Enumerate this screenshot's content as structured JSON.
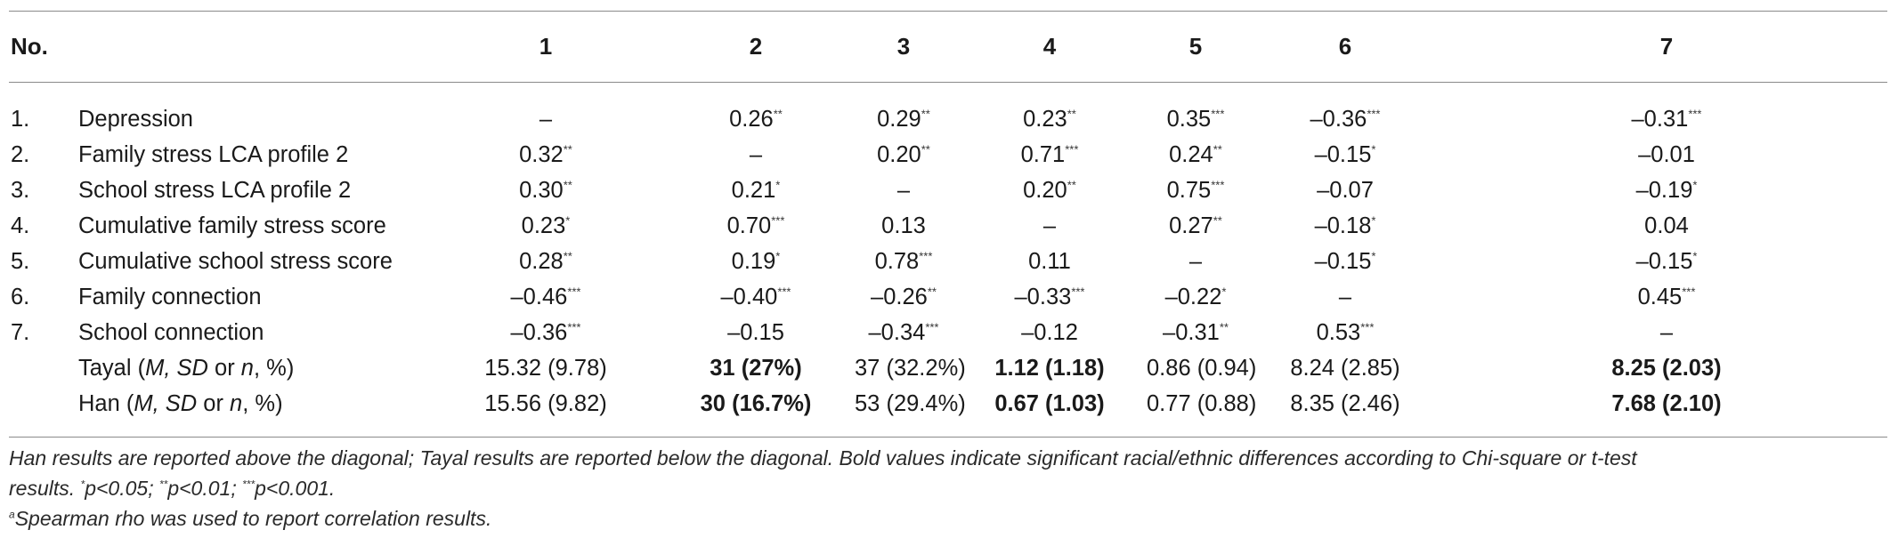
{
  "header": {
    "no_label": "No.",
    "columns": [
      "1",
      "2",
      "3",
      "4",
      "5",
      "6",
      "7"
    ]
  },
  "rows": [
    {
      "no": "1.",
      "label": "Depression",
      "cells": [
        {
          "v": "–",
          "s": "",
          "b": false
        },
        {
          "v": "0.26",
          "s": "**",
          "b": false
        },
        {
          "v": "0.29",
          "s": "**",
          "b": false
        },
        {
          "v": "0.23",
          "s": "**",
          "b": false
        },
        {
          "v": "0.35",
          "s": "***",
          "b": false
        },
        {
          "v": "–0.36",
          "s": "***",
          "b": false
        },
        {
          "v": "–0.31",
          "s": "***",
          "b": false
        }
      ]
    },
    {
      "no": "2.",
      "label": "Family stress LCA profile 2",
      "cells": [
        {
          "v": "0.32",
          "s": "**",
          "b": false
        },
        {
          "v": "–",
          "s": "",
          "b": false
        },
        {
          "v": "0.20",
          "s": "**",
          "b": false
        },
        {
          "v": "0.71",
          "s": "***",
          "b": false
        },
        {
          "v": "0.24",
          "s": "**",
          "b": false
        },
        {
          "v": "–0.15",
          "s": "*",
          "b": false
        },
        {
          "v": "–0.01",
          "s": "",
          "b": false
        }
      ]
    },
    {
      "no": "3.",
      "label": "School stress LCA profile 2",
      "cells": [
        {
          "v": "0.30",
          "s": "**",
          "b": false
        },
        {
          "v": "0.21",
          "s": "*",
          "b": false
        },
        {
          "v": "–",
          "s": "",
          "b": false
        },
        {
          "v": "0.20",
          "s": "**",
          "b": false
        },
        {
          "v": "0.75",
          "s": "***",
          "b": false
        },
        {
          "v": "–0.07",
          "s": "",
          "b": false
        },
        {
          "v": "–0.19",
          "s": "*",
          "b": false
        }
      ]
    },
    {
      "no": "4.",
      "label": "Cumulative family stress score",
      "cells": [
        {
          "v": "0.23",
          "s": "*",
          "b": false
        },
        {
          "v": "0.70",
          "s": "***",
          "b": false
        },
        {
          "v": "0.13",
          "s": "",
          "b": false
        },
        {
          "v": "–",
          "s": "",
          "b": false
        },
        {
          "v": "0.27",
          "s": "**",
          "b": false
        },
        {
          "v": "–0.18",
          "s": "*",
          "b": false
        },
        {
          "v": "0.04",
          "s": "",
          "b": false
        }
      ]
    },
    {
      "no": "5.",
      "label": "Cumulative school stress score",
      "cells": [
        {
          "v": "0.28",
          "s": "**",
          "b": false
        },
        {
          "v": "0.19",
          "s": "*",
          "b": false
        },
        {
          "v": "0.78",
          "s": "***",
          "b": false
        },
        {
          "v": "0.11",
          "s": "",
          "b": false
        },
        {
          "v": "–",
          "s": "",
          "b": false
        },
        {
          "v": "–0.15",
          "s": "*",
          "b": false
        },
        {
          "v": "–0.15",
          "s": "*",
          "b": false
        }
      ]
    },
    {
      "no": "6.",
      "label": "Family connection",
      "cells": [
        {
          "v": "–0.46",
          "s": "***",
          "b": false
        },
        {
          "v": "–0.40",
          "s": "***",
          "b": false
        },
        {
          "v": "–0.26",
          "s": "**",
          "b": false
        },
        {
          "v": "–0.33",
          "s": "***",
          "b": false
        },
        {
          "v": "–0.22",
          "s": "*",
          "b": false
        },
        {
          "v": "–",
          "s": "",
          "b": false
        },
        {
          "v": "0.45",
          "s": "***",
          "b": false
        }
      ]
    },
    {
      "no": "7.",
      "label": "School connection",
      "cells": [
        {
          "v": "–0.36",
          "s": "***",
          "b": false
        },
        {
          "v": "–0.15",
          "s": "",
          "b": false
        },
        {
          "v": "–0.34",
          "s": "***",
          "b": false
        },
        {
          "v": "–0.12",
          "s": "",
          "b": false
        },
        {
          "v": "–0.31",
          "s": "**",
          "b": false
        },
        {
          "v": "0.53",
          "s": "***",
          "b": false
        },
        {
          "v": "–",
          "s": "",
          "b": false
        }
      ]
    },
    {
      "no": "",
      "label_pre": "Tayal (",
      "label_italic_1": "M, SD",
      "label_mid": " or ",
      "label_italic_2": "n",
      "label_post": ", %)",
      "cells": [
        {
          "v": "15.32 (9.78)",
          "s": "",
          "b": false
        },
        {
          "v": "31 (27%)",
          "s": "",
          "b": true
        },
        {
          "v": "37 (32.2%)",
          "s": "",
          "b": false
        },
        {
          "v": "1.12 (1.18)",
          "s": "",
          "b": true
        },
        {
          "v": "0.86 (0.94)",
          "s": "",
          "b": false
        },
        {
          "v": "8.24 (2.85)",
          "s": "",
          "b": false
        },
        {
          "v": "8.25 (2.03)",
          "s": "",
          "b": true
        }
      ]
    },
    {
      "no": "",
      "label_pre": "Han (",
      "label_italic_1": "M, SD",
      "label_mid": " or ",
      "label_italic_2": "n",
      "label_post": ", %)",
      "cells": [
        {
          "v": "15.56 (9.82)",
          "s": "",
          "b": false
        },
        {
          "v": "30 (16.7%)",
          "s": "",
          "b": true
        },
        {
          "v": "53 (29.4%)",
          "s": "",
          "b": false
        },
        {
          "v": "0.67 (1.03)",
          "s": "",
          "b": true
        },
        {
          "v": "0.77 (0.88)",
          "s": "",
          "b": false
        },
        {
          "v": "8.35 (2.46)",
          "s": "",
          "b": false
        },
        {
          "v": "7.68 (2.10)",
          "s": "",
          "b": true
        }
      ]
    }
  ],
  "notes": {
    "line1": "Han results are reported above the diagonal; Tayal results are reported below the diagonal. Bold values indicate significant racial/ethnic differences according to Chi-square or t-test",
    "line2_a": "results. ",
    "line2_sup1": "*",
    "line2_b": "p<0.05; ",
    "line2_sup2": "**",
    "line2_c": "p<0.01; ",
    "line2_sup3": "***",
    "line2_d": "p<0.001.",
    "line3_sup": "a",
    "line3": "Spearman rho was used to report correlation results."
  }
}
